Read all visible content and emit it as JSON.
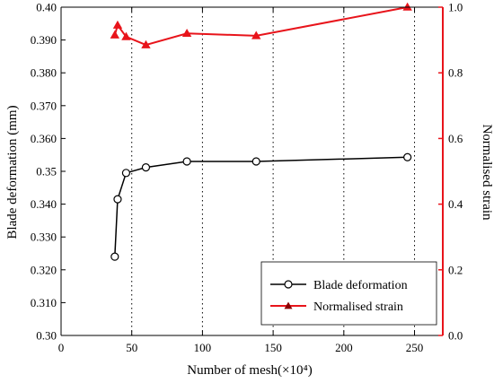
{
  "chart_data": {
    "type": "line",
    "title": "",
    "xlabel": "Number of mesh(×10⁴)",
    "ylabel_left": "Blade deformation (mm)",
    "ylabel_right": "Normalised strain",
    "xlim": [
      0,
      270
    ],
    "ylim_left": [
      0.3,
      0.4
    ],
    "ylim_right": [
      0.0,
      1.0
    ],
    "x_ticks": [
      "0",
      "50",
      "100",
      "150",
      "200",
      "250"
    ],
    "y_left_ticks": [
      "0.30",
      "0.310",
      "0.320",
      "0.330",
      "0.340",
      "0.35",
      "0.360",
      "0.370",
      "0.380",
      "0.390",
      "0.40"
    ],
    "y_right_ticks": [
      "0.0",
      "0.2",
      "0.4",
      "0.6",
      "0.8",
      "1.0"
    ],
    "x_gridlines": [
      50,
      100,
      150,
      200,
      250
    ],
    "grid": "vertical dotted",
    "legend_position": "bottom-right",
    "colors": {
      "blade": "#000000",
      "strain": "#e8141b",
      "right_axis": "#e8141b"
    },
    "series": [
      {
        "name": "Blade deformation",
        "axis": "left",
        "marker": "open-circle",
        "x": [
          38,
          40,
          46,
          60,
          89,
          138,
          245
        ],
        "y": [
          0.324,
          0.3415,
          0.3495,
          0.3512,
          0.353,
          0.353,
          0.3543
        ]
      },
      {
        "name": "Normalised strain",
        "axis": "right",
        "marker": "triangle",
        "x": [
          38,
          40,
          46,
          60,
          89,
          138,
          245
        ],
        "y": [
          0.915,
          0.945,
          0.91,
          0.885,
          0.92,
          0.913,
          1.0
        ]
      }
    ]
  }
}
